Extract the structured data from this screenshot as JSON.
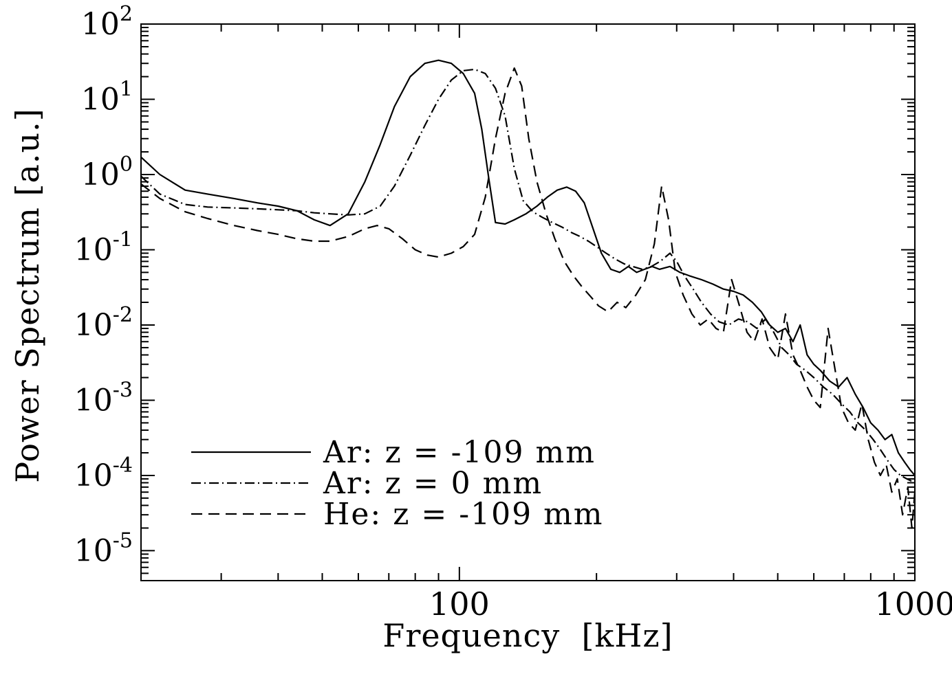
{
  "figure": {
    "background": "#ffffff",
    "line_color": "#000000"
  },
  "chart_data": {
    "type": "line",
    "title": "",
    "xlabel": "Frequency  [kHz]",
    "ylabel": "Power Spectrum [a.u.]",
    "x_scale": "log",
    "y_scale": "log",
    "xlim": [
      20,
      1000
    ],
    "ylim": [
      4e-06,
      100
    ],
    "grid": false,
    "legend_position": "inside bottom-left",
    "x_ticks": [
      {
        "value": 100,
        "label": "100"
      },
      {
        "value": 1000,
        "label": "1000"
      }
    ],
    "y_tick_exponents": [
      2,
      1,
      0,
      -1,
      -2,
      -3,
      -4,
      -5
    ],
    "series": [
      {
        "name": "Ar: z = -109 mm",
        "line_style": "solid",
        "points": [
          [
            20,
            1.7
          ],
          [
            22,
            1.0
          ],
          [
            25,
            0.62
          ],
          [
            28,
            0.55
          ],
          [
            32,
            0.48
          ],
          [
            36,
            0.42
          ],
          [
            40,
            0.38
          ],
          [
            44,
            0.33
          ],
          [
            48,
            0.25
          ],
          [
            52,
            0.21
          ],
          [
            57,
            0.3
          ],
          [
            62,
            0.8
          ],
          [
            67,
            2.5
          ],
          [
            72,
            8.0
          ],
          [
            78,
            20
          ],
          [
            84,
            30
          ],
          [
            90,
            33
          ],
          [
            96,
            30
          ],
          [
            102,
            22
          ],
          [
            108,
            12
          ],
          [
            112,
            4
          ],
          [
            116,
            0.9
          ],
          [
            120,
            0.23
          ],
          [
            126,
            0.22
          ],
          [
            132,
            0.25
          ],
          [
            140,
            0.3
          ],
          [
            148,
            0.38
          ],
          [
            156,
            0.5
          ],
          [
            164,
            0.62
          ],
          [
            172,
            0.68
          ],
          [
            180,
            0.6
          ],
          [
            188,
            0.42
          ],
          [
            196,
            0.2
          ],
          [
            205,
            0.09
          ],
          [
            215,
            0.055
          ],
          [
            225,
            0.05
          ],
          [
            235,
            0.06
          ],
          [
            245,
            0.05
          ],
          [
            255,
            0.055
          ],
          [
            265,
            0.06
          ],
          [
            275,
            0.055
          ],
          [
            290,
            0.06
          ],
          [
            305,
            0.05
          ],
          [
            320,
            0.045
          ],
          [
            340,
            0.04
          ],
          [
            360,
            0.035
          ],
          [
            380,
            0.03
          ],
          [
            400,
            0.028
          ],
          [
            420,
            0.025
          ],
          [
            440,
            0.02
          ],
          [
            460,
            0.015
          ],
          [
            480,
            0.01
          ],
          [
            500,
            0.008
          ],
          [
            520,
            0.009
          ],
          [
            540,
            0.006
          ],
          [
            560,
            0.01
          ],
          [
            580,
            0.004
          ],
          [
            600,
            0.003
          ],
          [
            620,
            0.0025
          ],
          [
            650,
            0.0018
          ],
          [
            680,
            0.0015
          ],
          [
            710,
            0.002
          ],
          [
            740,
            0.0012
          ],
          [
            770,
            0.0008
          ],
          [
            800,
            0.0005
          ],
          [
            830,
            0.0004
          ],
          [
            860,
            0.0003
          ],
          [
            890,
            0.00035
          ],
          [
            920,
            0.0002
          ],
          [
            950,
            0.00015
          ],
          [
            975,
            0.00012
          ],
          [
            1000,
            0.0001
          ]
        ]
      },
      {
        "name": "Ar: z = 0 mm",
        "line_style": "dashdot",
        "points": [
          [
            20,
            0.95
          ],
          [
            22,
            0.55
          ],
          [
            25,
            0.4
          ],
          [
            28,
            0.37
          ],
          [
            32,
            0.36
          ],
          [
            36,
            0.35
          ],
          [
            40,
            0.34
          ],
          [
            44,
            0.33
          ],
          [
            48,
            0.31
          ],
          [
            52,
            0.3
          ],
          [
            57,
            0.29
          ],
          [
            62,
            0.3
          ],
          [
            67,
            0.38
          ],
          [
            72,
            0.7
          ],
          [
            78,
            1.8
          ],
          [
            84,
            4.5
          ],
          [
            90,
            10
          ],
          [
            96,
            18
          ],
          [
            102,
            24
          ],
          [
            108,
            25
          ],
          [
            114,
            22
          ],
          [
            120,
            14
          ],
          [
            126,
            6
          ],
          [
            132,
            1.2
          ],
          [
            138,
            0.45
          ],
          [
            145,
            0.32
          ],
          [
            152,
            0.27
          ],
          [
            160,
            0.23
          ],
          [
            168,
            0.2
          ],
          [
            176,
            0.17
          ],
          [
            184,
            0.15
          ],
          [
            192,
            0.13
          ],
          [
            200,
            0.11
          ],
          [
            210,
            0.09
          ],
          [
            220,
            0.075
          ],
          [
            230,
            0.065
          ],
          [
            240,
            0.06
          ],
          [
            252,
            0.055
          ],
          [
            264,
            0.06
          ],
          [
            276,
            0.07
          ],
          [
            290,
            0.09
          ],
          [
            300,
            0.07
          ],
          [
            312,
            0.045
          ],
          [
            326,
            0.03
          ],
          [
            340,
            0.02
          ],
          [
            356,
            0.014
          ],
          [
            372,
            0.011
          ],
          [
            390,
            0.01
          ],
          [
            410,
            0.012
          ],
          [
            430,
            0.011
          ],
          [
            450,
            0.009
          ],
          [
            470,
            0.012
          ],
          [
            490,
            0.008
          ],
          [
            510,
            0.005
          ],
          [
            530,
            0.004
          ],
          [
            550,
            0.003
          ],
          [
            575,
            0.0025
          ],
          [
            600,
            0.002
          ],
          [
            630,
            0.0015
          ],
          [
            660,
            0.0012
          ],
          [
            690,
            0.0009
          ],
          [
            720,
            0.0007
          ],
          [
            750,
            0.0005
          ],
          [
            780,
            0.0004
          ],
          [
            810,
            0.0003
          ],
          [
            840,
            0.00022
          ],
          [
            870,
            0.00016
          ],
          [
            900,
            0.00012
          ],
          [
            930,
            0.0001
          ],
          [
            960,
            9e-05
          ],
          [
            1000,
            8e-05
          ]
        ]
      },
      {
        "name": "He: z = -109 mm",
        "line_style": "dashed",
        "points": [
          [
            20,
            0.75
          ],
          [
            22,
            0.48
          ],
          [
            25,
            0.32
          ],
          [
            28,
            0.26
          ],
          [
            32,
            0.21
          ],
          [
            36,
            0.18
          ],
          [
            40,
            0.16
          ],
          [
            44,
            0.14
          ],
          [
            48,
            0.13
          ],
          [
            52,
            0.13
          ],
          [
            57,
            0.15
          ],
          [
            62,
            0.19
          ],
          [
            66,
            0.21
          ],
          [
            70,
            0.19
          ],
          [
            75,
            0.14
          ],
          [
            80,
            0.1
          ],
          [
            85,
            0.085
          ],
          [
            90,
            0.08
          ],
          [
            96,
            0.09
          ],
          [
            102,
            0.11
          ],
          [
            108,
            0.16
          ],
          [
            114,
            0.5
          ],
          [
            120,
            3
          ],
          [
            126,
            12
          ],
          [
            132,
            26
          ],
          [
            137,
            15
          ],
          [
            142,
            3
          ],
          [
            148,
            0.8
          ],
          [
            155,
            0.3
          ],
          [
            162,
            0.14
          ],
          [
            170,
            0.07
          ],
          [
            178,
            0.045
          ],
          [
            186,
            0.032
          ],
          [
            194,
            0.024
          ],
          [
            202,
            0.018
          ],
          [
            212,
            0.015
          ],
          [
            222,
            0.02
          ],
          [
            232,
            0.017
          ],
          [
            244,
            0.025
          ],
          [
            256,
            0.04
          ],
          [
            268,
            0.12
          ],
          [
            278,
            0.7
          ],
          [
            288,
            0.25
          ],
          [
            298,
            0.05
          ],
          [
            310,
            0.025
          ],
          [
            324,
            0.014
          ],
          [
            338,
            0.01
          ],
          [
            352,
            0.012
          ],
          [
            366,
            0.009
          ],
          [
            380,
            0.008
          ],
          [
            396,
            0.04
          ],
          [
            412,
            0.018
          ],
          [
            428,
            0.008
          ],
          [
            444,
            0.006
          ],
          [
            462,
            0.012
          ],
          [
            480,
            0.005
          ],
          [
            500,
            0.0035
          ],
          [
            520,
            0.014
          ],
          [
            540,
            0.004
          ],
          [
            560,
            0.0025
          ],
          [
            580,
            0.0015
          ],
          [
            600,
            0.001
          ],
          [
            620,
            0.0008
          ],
          [
            645,
            0.009
          ],
          [
            665,
            0.003
          ],
          [
            690,
            0.0008
          ],
          [
            715,
            0.0005
          ],
          [
            740,
            0.0004
          ],
          [
            765,
            0.0009
          ],
          [
            790,
            0.0003
          ],
          [
            815,
            0.00015
          ],
          [
            840,
            0.0001
          ],
          [
            865,
            0.00014
          ],
          [
            890,
            6e-05
          ],
          [
            915,
            9e-05
          ],
          [
            940,
            3e-05
          ],
          [
            965,
            7e-05
          ],
          [
            985,
            2e-05
          ],
          [
            1000,
            6e-05
          ]
        ]
      }
    ]
  }
}
